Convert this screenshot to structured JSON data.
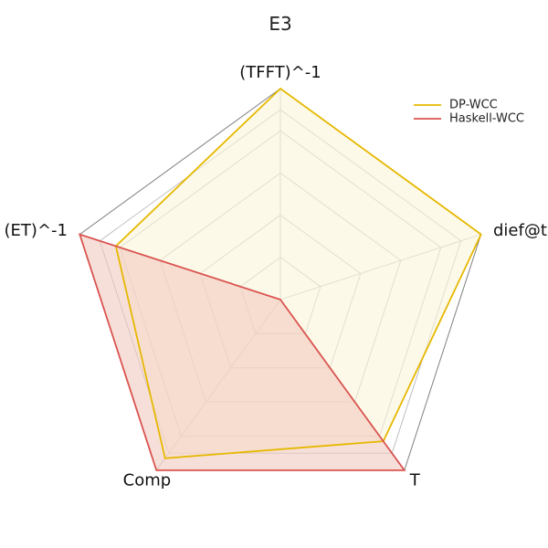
{
  "chart_data": {
    "type": "radar",
    "title": "E3",
    "axes": [
      "(TFFT)^-1",
      "dief@t",
      "T",
      "Comp",
      "(ET)^-1"
    ],
    "range": [
      0,
      1
    ],
    "grid_levels": [
      0.2,
      0.4,
      0.6,
      0.8,
      0.9,
      1.0
    ],
    "grid": true,
    "legend_position": "top-right",
    "series": [
      {
        "name": "DP-WCC",
        "values": [
          1.0,
          1.0,
          0.83,
          0.93,
          0.82
        ],
        "color": "#e6b800",
        "fill": "#fcf5da"
      },
      {
        "name": "Haskell-WCC",
        "values": [
          0.0,
          0.0,
          1.0,
          1.0,
          1.0
        ],
        "color": "#d9534f",
        "fill": "#f2c9c0"
      }
    ]
  }
}
